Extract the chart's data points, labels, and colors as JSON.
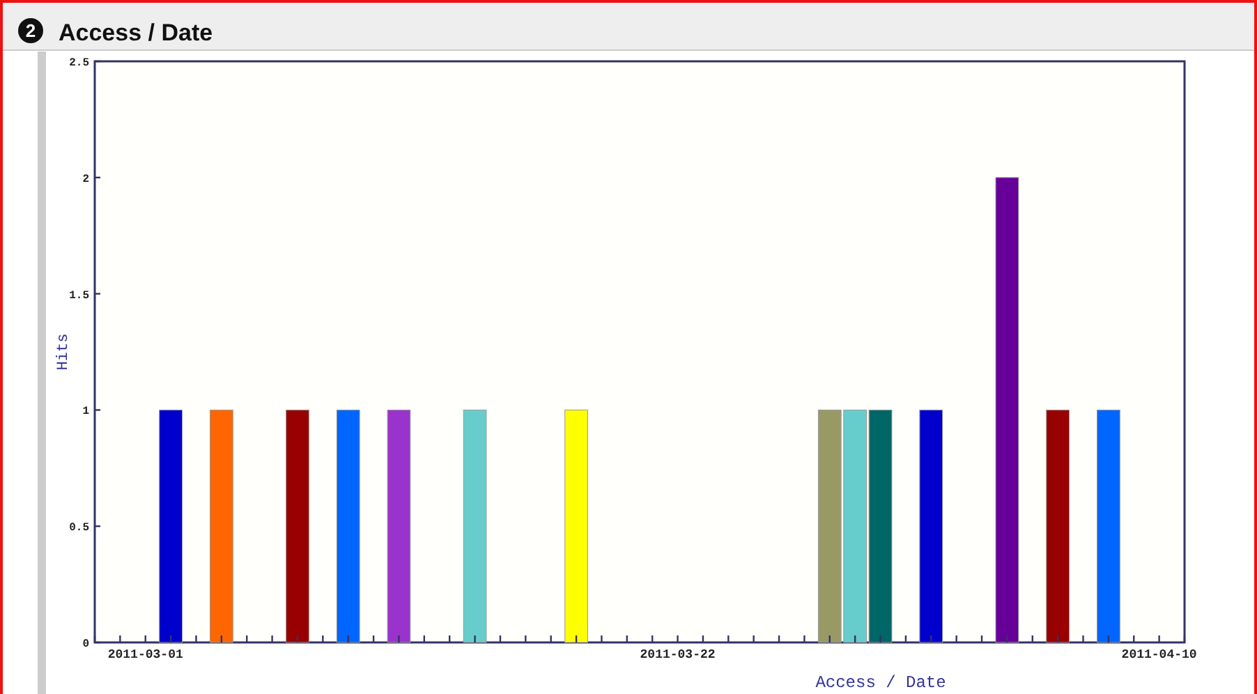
{
  "chart_data": {
    "type": "bar",
    "title": "Access / Date",
    "xlabel": "Access / Date",
    "ylabel": "Hits",
    "annotations": [
      "2"
    ],
    "x": [
      "2011-03-02",
      "2011-03-04",
      "2011-03-07",
      "2011-03-09",
      "2011-03-11",
      "2011-03-14",
      "2011-03-18",
      "2011-03-28",
      "2011-03-29",
      "2011-03-30",
      "2011-04-01",
      "2011-04-04",
      "2011-04-06",
      "2011-04-08"
    ],
    "values": [
      1,
      1,
      1,
      1,
      1,
      1,
      1,
      1,
      1,
      1,
      1,
      2,
      1,
      1
    ],
    "colors": [
      "#0000cc",
      "#ff6600",
      "#990000",
      "#0066ff",
      "#9933cc",
      "#66cccc",
      "#ffff00",
      "#999966",
      "#66cccc",
      "#006666",
      "#0000cc",
      "#660099",
      "#990000",
      "#0066ff"
    ],
    "xlim": [
      "2011-02-27",
      "2011-04-11"
    ],
    "xticks": [
      {
        "value": "2011-02-27",
        "label": null
      },
      {
        "value": "2011-02-28",
        "label": null
      },
      {
        "value": "2011-03-01",
        "label": "2011-03-01"
      },
      {
        "value": "2011-03-02",
        "label": null
      },
      {
        "value": "2011-03-03",
        "label": null
      },
      {
        "value": "2011-03-04",
        "label": null
      },
      {
        "value": "2011-03-05",
        "label": null
      },
      {
        "value": "2011-03-06",
        "label": null
      },
      {
        "value": "2011-03-07",
        "label": null
      },
      {
        "value": "2011-03-08",
        "label": null
      },
      {
        "value": "2011-03-09",
        "label": null
      },
      {
        "value": "2011-03-10",
        "label": null
      },
      {
        "value": "2011-03-11",
        "label": null
      },
      {
        "value": "2011-03-12",
        "label": null
      },
      {
        "value": "2011-03-13",
        "label": null
      },
      {
        "value": "2011-03-14",
        "label": null
      },
      {
        "value": "2011-03-15",
        "label": null
      },
      {
        "value": "2011-03-16",
        "label": null
      },
      {
        "value": "2011-03-17",
        "label": null
      },
      {
        "value": "2011-03-18",
        "label": null
      },
      {
        "value": "2011-03-19",
        "label": null
      },
      {
        "value": "2011-03-20",
        "label": null
      },
      {
        "value": "2011-03-21",
        "label": null
      },
      {
        "value": "2011-03-22",
        "label": "2011-03-22"
      },
      {
        "value": "2011-03-23",
        "label": null
      },
      {
        "value": "2011-03-24",
        "label": null
      },
      {
        "value": "2011-03-25",
        "label": null
      },
      {
        "value": "2011-03-26",
        "label": null
      },
      {
        "value": "2011-03-27",
        "label": null
      },
      {
        "value": "2011-03-28",
        "label": null
      },
      {
        "value": "2011-03-29",
        "label": null
      },
      {
        "value": "2011-03-30",
        "label": null
      },
      {
        "value": "2011-03-31",
        "label": null
      },
      {
        "value": "2011-04-01",
        "label": null
      },
      {
        "value": "2011-04-02",
        "label": null
      },
      {
        "value": "2011-04-03",
        "label": null
      },
      {
        "value": "2011-04-04",
        "label": null
      },
      {
        "value": "2011-04-05",
        "label": null
      },
      {
        "value": "2011-04-06",
        "label": null
      },
      {
        "value": "2011-04-07",
        "label": null
      },
      {
        "value": "2011-04-08",
        "label": null
      },
      {
        "value": "2011-04-09",
        "label": null
      },
      {
        "value": "2011-04-10",
        "label": "2011-04-10"
      },
      {
        "value": "2011-04-11",
        "label": null
      }
    ],
    "ylim": [
      0,
      2.5
    ],
    "yticks": [
      0,
      0.5,
      1,
      1.5,
      2,
      2.5
    ],
    "grid": false
  }
}
